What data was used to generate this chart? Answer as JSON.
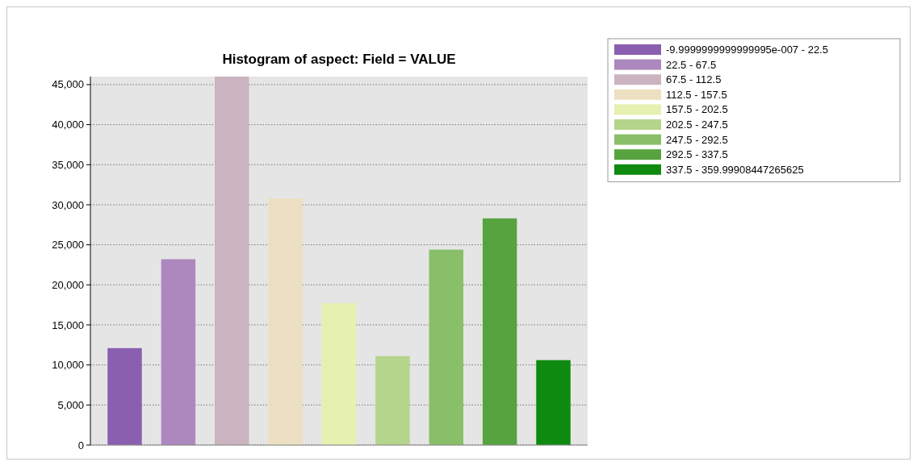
{
  "chart_data": {
    "type": "bar",
    "title": "Histogram of aspect: Field = VALUE",
    "categories": [
      null,
      null,
      null,
      null,
      null,
      null,
      null,
      null,
      null
    ],
    "series": [
      {
        "name": "-9.9999999999999995e-007 - 22.5",
        "color": "#8a5fb0",
        "values": [
          12100,
          null,
          null,
          null,
          null,
          null,
          null,
          null,
          null
        ]
      },
      {
        "name": "22.5 - 67.5",
        "color": "#ad88bf",
        "values": [
          null,
          23200,
          null,
          null,
          null,
          null,
          null,
          null,
          null
        ]
      },
      {
        "name": "67.5 - 112.5",
        "color": "#cbb3c0",
        "values": [
          null,
          null,
          46000,
          null,
          null,
          null,
          null,
          null,
          null
        ]
      },
      {
        "name": "112.5 - 157.5",
        "color": "#ede0c2",
        "values": [
          null,
          null,
          null,
          30800,
          null,
          null,
          null,
          null,
          null
        ]
      },
      {
        "name": "157.5 - 202.5",
        "color": "#e6f0b0",
        "values": [
          null,
          null,
          null,
          null,
          17700,
          null,
          null,
          null,
          null
        ]
      },
      {
        "name": "202.5 - 247.5",
        "color": "#b5d48c",
        "values": [
          null,
          null,
          null,
          null,
          null,
          11100,
          null,
          null,
          null
        ]
      },
      {
        "name": "247.5 - 292.5",
        "color": "#8abf69",
        "values": [
          null,
          null,
          null,
          null,
          null,
          null,
          24400,
          null,
          null
        ]
      },
      {
        "name": "292.5 - 337.5",
        "color": "#57a340",
        "values": [
          null,
          null,
          null,
          null,
          null,
          null,
          null,
          28300,
          null
        ]
      },
      {
        "name": "337.5 - 359.99908447265625",
        "color": "#0f8a10",
        "values": [
          null,
          null,
          null,
          null,
          null,
          null,
          null,
          null,
          10600
        ]
      }
    ],
    "ylim": [
      0,
      46000
    ],
    "yticks": [
      {
        "value": 0,
        "label": "0"
      },
      {
        "value": 5000,
        "label": "5,000"
      },
      {
        "value": 10000,
        "label": "10,000"
      },
      {
        "value": 15000,
        "label": "15,000"
      },
      {
        "value": 20000,
        "label": "20,000"
      },
      {
        "value": 25000,
        "label": "25,000"
      },
      {
        "value": 30000,
        "label": "30,000"
      },
      {
        "value": 35000,
        "label": "35,000"
      },
      {
        "value": 40000,
        "label": "40,000"
      },
      {
        "value": 45000,
        "label": "45,000"
      }
    ],
    "grid": "y",
    "legend": "right"
  }
}
